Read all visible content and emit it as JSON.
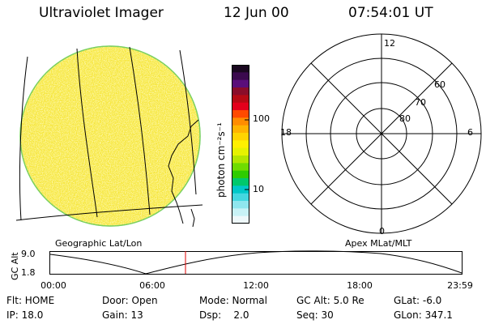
{
  "header": {
    "instrument": "Ultraviolet Imager",
    "date": "12 Jun 00",
    "time": "07:54:01 UT"
  },
  "colorbar": {
    "label": "photon cm⁻²s⁻¹",
    "ticks": [
      "100",
      "10"
    ],
    "colors": [
      "#1a0820",
      "#3b0a4e",
      "#5a0f7a",
      "#8a0d2a",
      "#b60a14",
      "#e3001b",
      "#ff4a00",
      "#ff8c00",
      "#ffb300",
      "#ffd400",
      "#fff000",
      "#e6f200",
      "#b3e600",
      "#6fdc00",
      "#2ecc00",
      "#00c86c",
      "#00c8c8",
      "#44d7e0",
      "#8fe6ee",
      "#c8f2f6",
      "#eef8fa"
    ]
  },
  "geo_panel": {
    "label": "Geographic Lat/Lon",
    "disk_color": "#fbf080"
  },
  "polar_panel": {
    "label": "Apex MLat/MLT",
    "mlt_labels": {
      "top": "12",
      "left": "18",
      "right": "6",
      "bottom": "0"
    },
    "lat_labels": [
      "60",
      "70",
      "80"
    ]
  },
  "alt_plot": {
    "ylabel": "GC Alt",
    "yticks": [
      "9.0",
      "1.8"
    ],
    "xticks": [
      "00:00",
      "06:00",
      "12:00",
      "18:00",
      "23:59"
    ],
    "marker_color": "#e00000"
  },
  "info": {
    "flt": "Flt: HOME",
    "door": "Door: Open",
    "mode": "Mode: Normal",
    "gcalt": "GC Alt: 5.0 Re",
    "glat": "GLat:  -6.0",
    "ip": "IP: 18.0",
    "gain": "Gain: 13",
    "dsp": "Dsp:    2.0",
    "seq": "Seq: 30",
    "glon": "GLon: 347.1"
  }
}
